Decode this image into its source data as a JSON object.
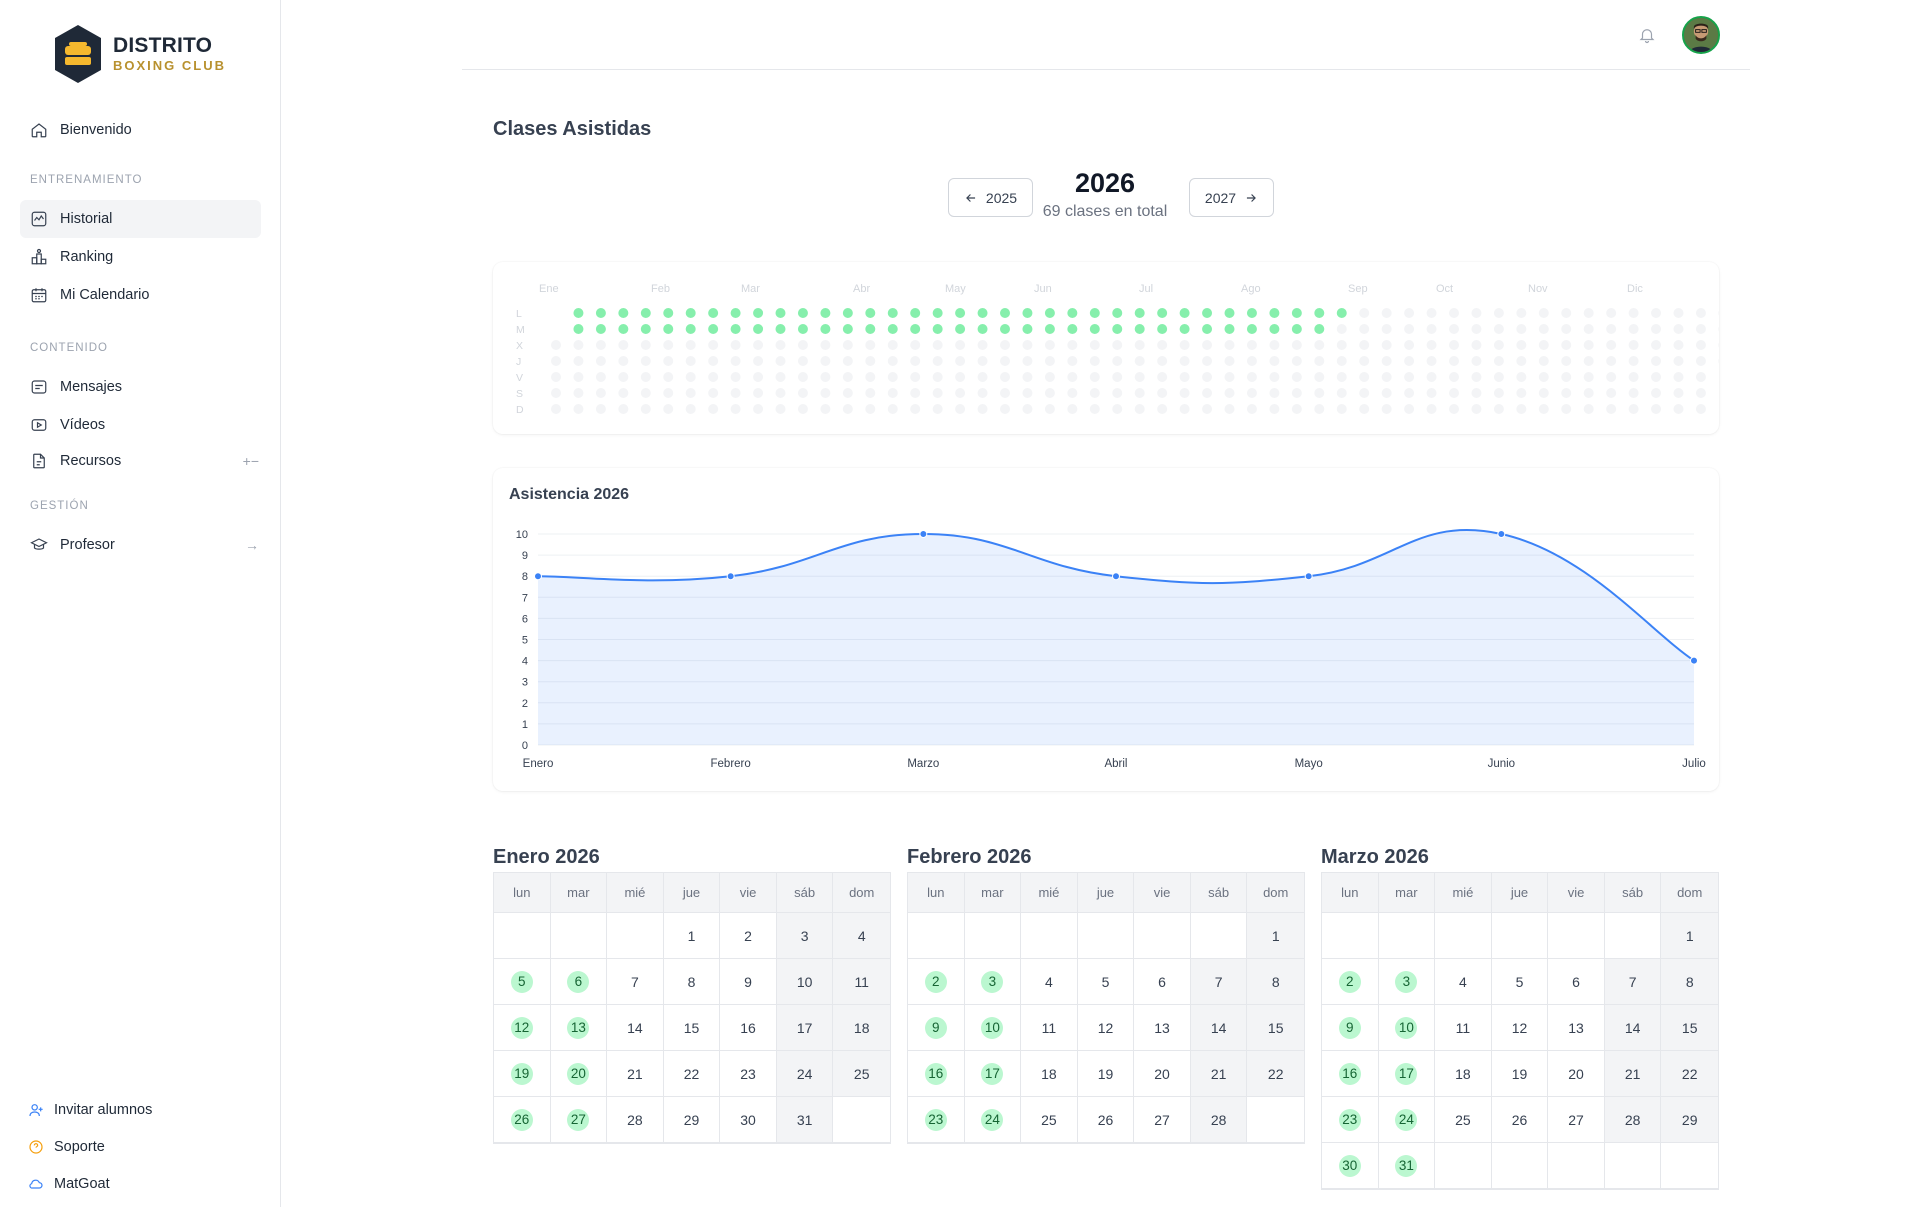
{
  "brand": {
    "title": "DISTRITO",
    "subtitle": "BOXING CLUB"
  },
  "sidebar": {
    "top_item": {
      "label": "Bienvenido",
      "icon": "home-icon"
    },
    "sections": [
      {
        "title": "ENTRENAMIENTO",
        "items": [
          {
            "label": "Historial",
            "icon": "activity-icon",
            "active": true
          },
          {
            "label": "Ranking",
            "icon": "podium-icon"
          },
          {
            "label": "Mi Calendario",
            "icon": "calendar-icon"
          }
        ]
      },
      {
        "title": "CONTENIDO",
        "items": [
          {
            "label": "Mensajes",
            "icon": "message-icon"
          },
          {
            "label": "Vídeos",
            "icon": "video-icon"
          },
          {
            "label": "Recursos",
            "icon": "file-icon",
            "extra": "+−"
          }
        ]
      },
      {
        "title": "GESTIÓN",
        "items": [
          {
            "label": "Profesor",
            "icon": "graduation-cap-icon",
            "extra": "→"
          }
        ]
      }
    ],
    "bottom": [
      {
        "label": "Invitar alumnos",
        "icon": "user-plus-icon",
        "color": "#3b82f6"
      },
      {
        "label": "Soporte",
        "icon": "help-circle-icon",
        "color": "#f59e0b"
      },
      {
        "label": "MatGoat",
        "icon": "cloud-icon",
        "color": "#3b82f6"
      }
    ]
  },
  "main": {
    "title": "Clases Asistidas",
    "prev_year_label": "2025",
    "next_year_label": "2027",
    "year": "2026",
    "total_label": "69 clases en total"
  },
  "heatmap": {
    "months": [
      "Ene",
      "Feb",
      "Mar",
      "Abr",
      "May",
      "Jun",
      "Jul",
      "Ago",
      "Sep",
      "Oct",
      "Nov",
      "Dic"
    ],
    "days": [
      "L",
      "M",
      "X",
      "J",
      "V",
      "S",
      "D"
    ],
    "weeks": 53,
    "attended_rows": [
      0,
      1
    ],
    "attended_weeks_row0": 35,
    "attended_weeks_row1": 34,
    "colors": {
      "attended": "#86efac",
      "empty": "#f3f4f6"
    }
  },
  "chart_data": {
    "type": "area",
    "title": "Asistencia 2026",
    "categories": [
      "Enero",
      "Febrero",
      "Marzo",
      "Abril",
      "Mayo",
      "Junio",
      "Julio"
    ],
    "values": [
      8,
      8,
      10,
      8,
      8,
      10,
      4
    ],
    "ylim": [
      0,
      10
    ],
    "yticks": [
      0,
      1,
      2,
      3,
      4,
      5,
      6,
      7,
      8,
      9,
      10
    ],
    "grid": true,
    "color": "#3b82f6"
  },
  "calendar": {
    "weekday_headers": [
      "lun",
      "mar",
      "mié",
      "jue",
      "vie",
      "sáb",
      "dom"
    ],
    "months": [
      {
        "title": "Enero 2026",
        "start_offset": 3,
        "days": 31,
        "attended": [
          5,
          6,
          12,
          13,
          19,
          20,
          26,
          27
        ]
      },
      {
        "title": "Febrero 2026",
        "start_offset": 6,
        "days": 28,
        "attended": [
          2,
          3,
          9,
          10,
          16,
          17,
          23,
          24
        ]
      },
      {
        "title": "Marzo 2026",
        "start_offset": 6,
        "days": 31,
        "attended": [
          2,
          3,
          9,
          10,
          16,
          17,
          23,
          24,
          30,
          31
        ]
      }
    ]
  }
}
